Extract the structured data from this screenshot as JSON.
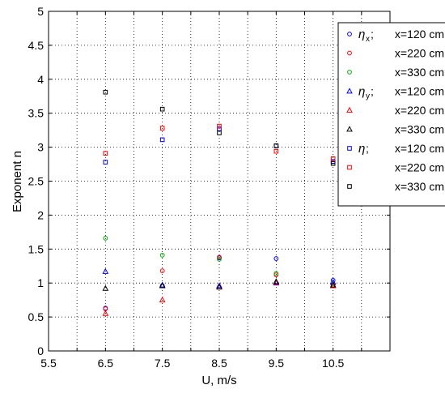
{
  "chart_data": {
    "type": "scatter",
    "xlabel": "U, m/s",
    "ylabel": "Exponent n",
    "xlim": [
      5.5,
      11.5
    ],
    "ylim": [
      0,
      5
    ],
    "xticks": [
      "5.5",
      "6.5",
      "7.5",
      "8.5",
      "9.5",
      "10.5"
    ],
    "yticks": [
      "0",
      "0.5",
      "1",
      "1.5",
      "2",
      "2.5",
      "3",
      "3.5",
      "4",
      "4.5",
      "5"
    ],
    "grid": true,
    "legend_position": "top-right",
    "legend_groups": [
      {
        "symbol": "η",
        "sub": "x",
        "suffix": ";"
      },
      {
        "symbol": "η",
        "sub": "y",
        "suffix": ";"
      },
      {
        "symbol": "η",
        "sub": "",
        "suffix": ";"
      }
    ],
    "series": [
      {
        "name": "x=120 cm",
        "group": 0,
        "marker": "circle",
        "color": "#0000ff",
        "x": [
          6.5,
          7.5,
          8.5,
          9.5,
          10.5
        ],
        "y": [
          0.63,
          0.96,
          1.37,
          1.36,
          1.04
        ]
      },
      {
        "name": "x=220 cm",
        "group": 0,
        "marker": "circle",
        "color": "#ff0000",
        "x": [
          6.5,
          7.5,
          8.5,
          9.5,
          10.5
        ],
        "y": [
          0.62,
          1.18,
          1.38,
          1.12,
          0.97
        ]
      },
      {
        "name": "x=330 cm",
        "group": 0,
        "marker": "circle",
        "color": "#00aa00",
        "x": [
          6.5,
          7.5,
          8.5,
          9.5,
          10.5
        ],
        "y": [
          1.66,
          1.41,
          1.35,
          1.14,
          0.99
        ]
      },
      {
        "name": "x=120 cm",
        "group": 1,
        "marker": "triangle",
        "color": "#0000ff",
        "x": [
          6.5,
          7.5,
          8.5,
          9.5,
          10.5
        ],
        "y": [
          1.17,
          0.97,
          0.96,
          1.0,
          1.01
        ]
      },
      {
        "name": "x=220 cm",
        "group": 1,
        "marker": "triangle",
        "color": "#ff0000",
        "x": [
          6.5,
          7.5,
          8.5,
          9.5,
          10.5
        ],
        "y": [
          0.55,
          0.75,
          0.94,
          1.01,
          0.96
        ]
      },
      {
        "name": "x=330 cm",
        "group": 1,
        "marker": "triangle",
        "color": "#000000",
        "x": [
          6.5,
          7.5,
          8.5,
          9.5,
          10.5
        ],
        "y": [
          0.92,
          0.96,
          0.94,
          1.02,
          0.97
        ]
      },
      {
        "name": "x=120 cm",
        "group": 2,
        "marker": "square",
        "color": "#0000ff",
        "x": [
          6.5,
          7.5,
          8.5,
          9.5,
          10.5
        ],
        "y": [
          2.78,
          3.11,
          3.27,
          3.02,
          2.79
        ]
      },
      {
        "name": "x=220 cm",
        "group": 2,
        "marker": "square",
        "color": "#ff0000",
        "x": [
          6.5,
          7.5,
          8.5,
          9.5,
          10.5
        ],
        "y": [
          2.91,
          3.28,
          3.31,
          2.94,
          2.83
        ]
      },
      {
        "name": "x=330 cm",
        "group": 2,
        "marker": "square",
        "color": "#000000",
        "x": [
          6.5,
          7.5,
          8.5,
          9.5,
          10.5
        ],
        "y": [
          3.81,
          3.56,
          3.21,
          3.02,
          2.76
        ]
      }
    ]
  }
}
